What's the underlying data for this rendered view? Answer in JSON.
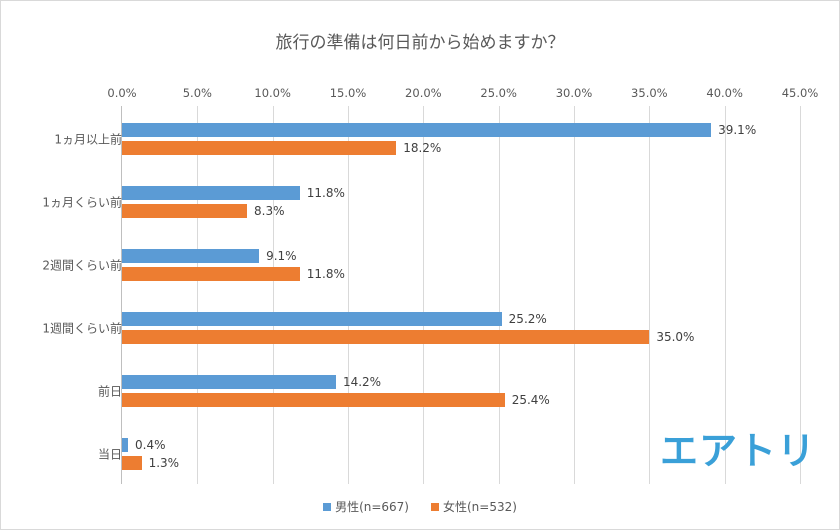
{
  "chart_data": {
    "type": "bar",
    "orientation": "horizontal",
    "title": "旅行の準備は何日前から始めますか？",
    "xlabel": "",
    "ylabel": "",
    "xlim": [
      0,
      45
    ],
    "x_ticks": [
      "0.0%",
      "5.0%",
      "10.0%",
      "15.0%",
      "20.0%",
      "25.0%",
      "30.0%",
      "35.0%",
      "40.0%",
      "45.0%"
    ],
    "x_axis_position": "top",
    "grid": true,
    "legend_position": "bottom",
    "categories": [
      "1ヵ月以上前",
      "1ヵ月くらい前",
      "2週間くらい前",
      "1週間くらい前",
      "前日",
      "当日"
    ],
    "series": [
      {
        "name": "男性(n=667)",
        "color": "#5b9bd5",
        "values": [
          39.1,
          11.8,
          9.1,
          25.2,
          14.2,
          0.4
        ],
        "labels": [
          "39.1%",
          "11.8%",
          "9.1%",
          "25.2%",
          "14.2%",
          "0.4%"
        ]
      },
      {
        "name": "女性(n=532)",
        "color": "#ed7d31",
        "values": [
          18.2,
          8.3,
          11.8,
          35.0,
          25.4,
          1.3
        ],
        "labels": [
          "18.2%",
          "8.3%",
          "11.8%",
          "35.0%",
          "25.4%",
          "1.3%"
        ]
      }
    ]
  },
  "logo": {
    "text": "エアトリ",
    "color": "#3aa0d8"
  }
}
